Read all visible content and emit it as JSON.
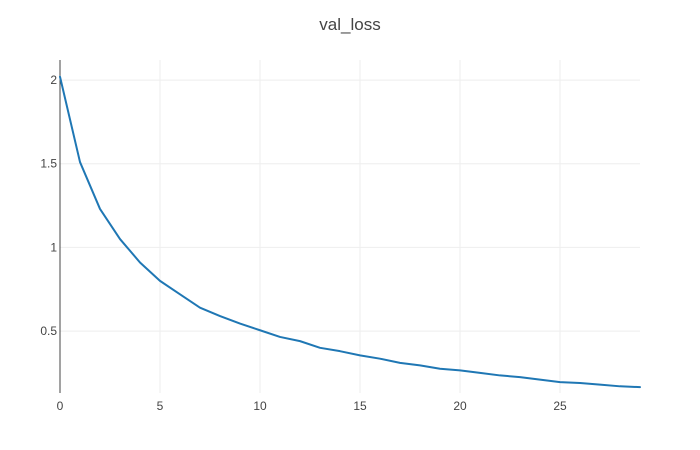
{
  "chart_data": {
    "type": "line",
    "title": "val_loss",
    "xlabel": "",
    "ylabel": "",
    "xlim": [
      0,
      29
    ],
    "ylim": [
      0.13,
      2.12
    ],
    "x_ticks": [
      0,
      5,
      10,
      15,
      20,
      25
    ],
    "x_tick_labels": [
      "0",
      "5",
      "10",
      "15",
      "20",
      "25"
    ],
    "y_ticks": [
      0.5,
      1,
      1.5,
      2
    ],
    "y_tick_labels": [
      "0.5",
      "1",
      "1.5",
      "2"
    ],
    "grid": true,
    "legend": "none",
    "series": [
      {
        "color": "#1f77b4",
        "x": [
          0,
          1,
          2,
          3,
          4,
          5,
          6,
          7,
          8,
          9,
          10,
          11,
          12,
          13,
          14,
          15,
          16,
          17,
          18,
          19,
          20,
          21,
          22,
          23,
          24,
          25,
          26,
          27,
          28,
          29
        ],
        "y": [
          2.02,
          1.51,
          1.23,
          1.05,
          0.91,
          0.8,
          0.72,
          0.64,
          0.59,
          0.545,
          0.505,
          0.465,
          0.44,
          0.4,
          0.38,
          0.355,
          0.335,
          0.31,
          0.295,
          0.275,
          0.265,
          0.25,
          0.235,
          0.225,
          0.21,
          0.195,
          0.19,
          0.18,
          0.17,
          0.165
        ]
      }
    ]
  }
}
